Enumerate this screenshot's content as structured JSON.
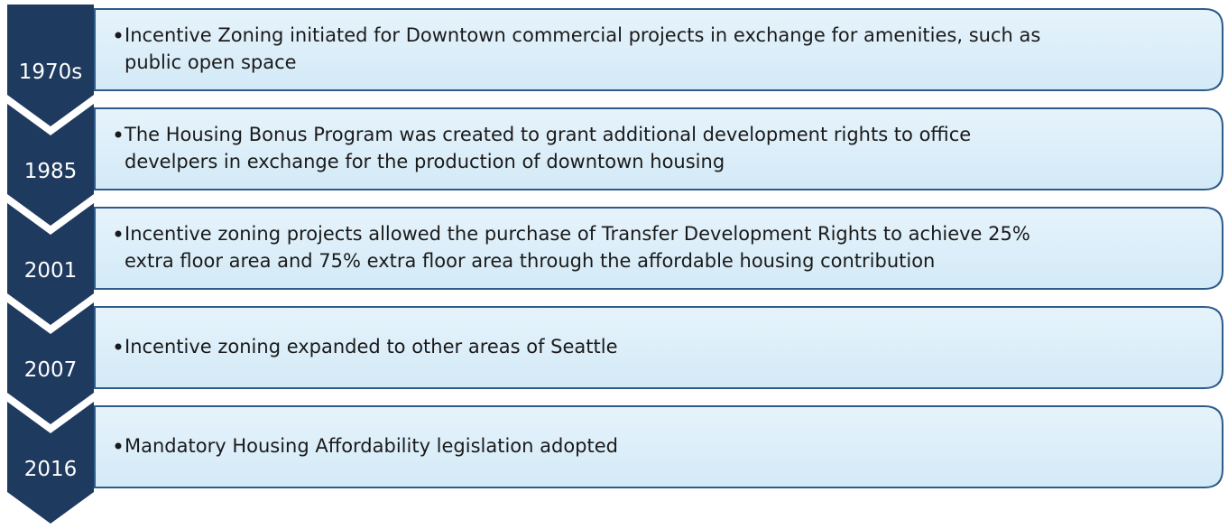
{
  "timeline": {
    "items": [
      {
        "label": "1970s",
        "lines": [
          "Incentive Zoning initiated for Downtown commercial projects in exchange for amenities, such as",
          "public open space"
        ]
      },
      {
        "label": "1985",
        "lines": [
          "The Housing Bonus Program was created to grant additional development rights to office",
          "develpers in exchange for the production of downtown housing"
        ]
      },
      {
        "label": "2001",
        "lines": [
          "Incentive zoning projects allowed the purchase of Transfer Development Rights to achieve 25%",
          "extra floor area and 75% extra floor area through the affordable housing contribution"
        ]
      },
      {
        "label": "2007",
        "lines": [
          "Incentive zoning expanded to other areas of Seattle"
        ]
      },
      {
        "label": "2016",
        "lines": [
          "Mandatory Housing Affordability legislation adopted"
        ]
      }
    ]
  }
}
